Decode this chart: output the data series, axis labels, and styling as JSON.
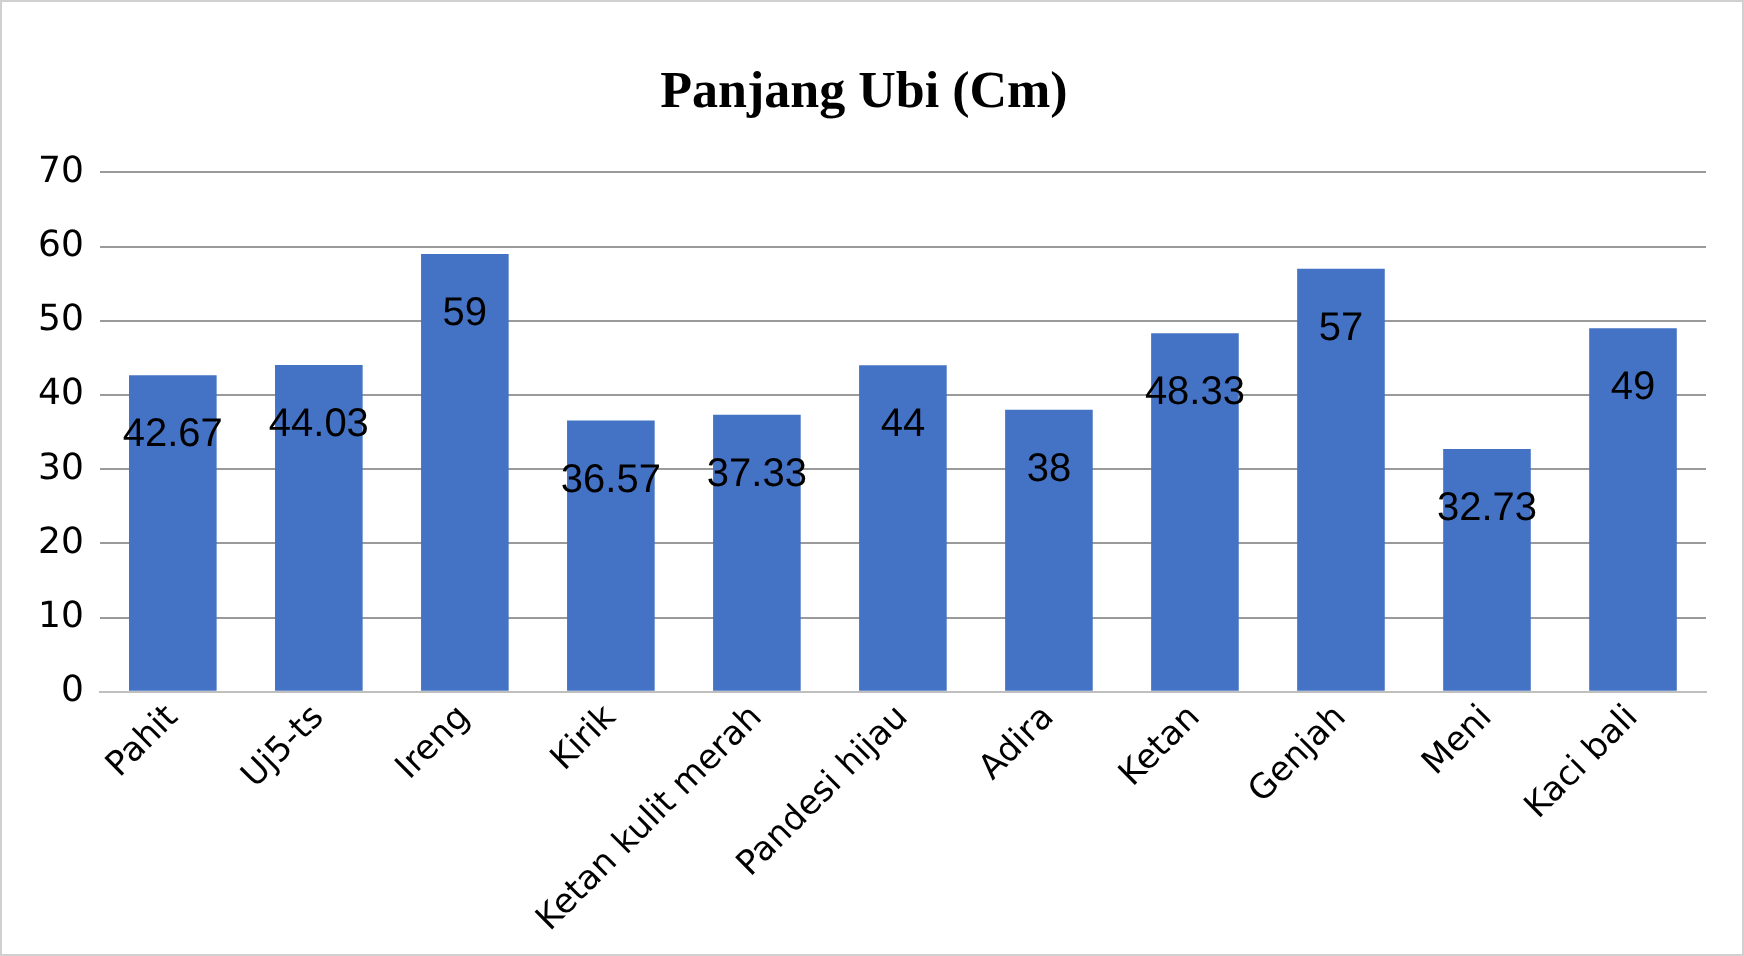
{
  "chart_data": {
    "type": "bar",
    "title": "Panjang Ubi (Cm)",
    "categories": [
      "Pahit",
      "Uj5-ts",
      "Ireng",
      "Kirik",
      "Ketan kulit merah",
      "Pandesi hijau",
      "Adira",
      "Ketan",
      "Genjah",
      "Meni",
      "Kaci bali"
    ],
    "values": [
      42.67,
      44.03,
      59,
      36.57,
      37.33,
      44,
      38,
      48.33,
      57,
      32.73,
      49
    ],
    "color": "#4472c4",
    "ylim": [
      0,
      70
    ],
    "yticks": [
      0,
      10,
      20,
      30,
      40,
      50,
      60,
      70
    ],
    "grid": "y",
    "legend": false,
    "data_labels": true
  }
}
